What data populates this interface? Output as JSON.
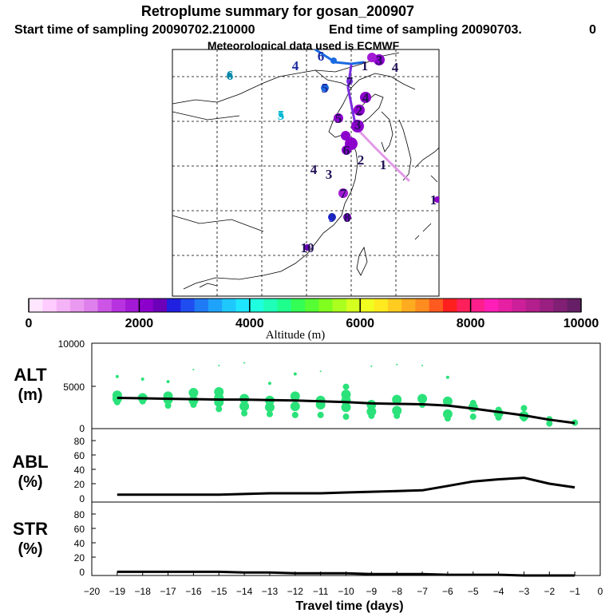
{
  "header": {
    "title": "Retroplume summary for gosan_200907",
    "start_label": "Start time of sampling 20090702.210000",
    "end_label": "End time of sampling 20090703.",
    "end_value": "0",
    "met_label": "Meteorological data used is ECMWF"
  },
  "colorbar": {
    "min": 0,
    "max": 10000,
    "tick_labels": [
      "0",
      "2000",
      "4000",
      "6000",
      "8000",
      "10000"
    ],
    "tick_values": [
      0,
      2000,
      4000,
      6000,
      8000,
      10000
    ],
    "title": "Altitude (m)",
    "colors": [
      "#ffe6ff",
      "#ffccff",
      "#f5b3f7",
      "#ea99f0",
      "#de80eb",
      "#cc55e6",
      "#b833e0",
      "#a31ad6",
      "#8c00cc",
      "#6b00b8",
      "#2020e0",
      "#1f4df0",
      "#1f7af5",
      "#1fa3fa",
      "#1fc8fc",
      "#1fe6ff",
      "#1fffe0",
      "#1fffb8",
      "#1fff8c",
      "#33ff55",
      "#55ff33",
      "#80ff1f",
      "#aaff1f",
      "#d4ff1f",
      "#f0ff1f",
      "#ffea1f",
      "#ffcc1f",
      "#ffab1f",
      "#ff8c1f",
      "#ff5a1f",
      "#ff1f1f",
      "#ff1f5a",
      "#ff1f8c",
      "#ff1fb8",
      "#e61fa3",
      "#cc1f99",
      "#b31f8c",
      "#991f80",
      "#801f73",
      "#661f66"
    ]
  },
  "map": {
    "labels": [
      {
        "text": "6",
        "color": "#0088aa"
      },
      {
        "text": "4",
        "color": "#1a2aa0"
      },
      {
        "text": "5",
        "color": "#00b8d4"
      },
      {
        "text": "4",
        "color": "#221155"
      },
      {
        "text": "3",
        "color": "#221155"
      },
      {
        "text": "2",
        "color": "#221155"
      },
      {
        "text": "1",
        "color": "#221155"
      },
      {
        "text": "4",
        "color": "#221155"
      },
      {
        "text": "1",
        "color": "#221155"
      },
      {
        "text": "10",
        "color": "#221155"
      },
      {
        "text": "7",
        "color": "#221155"
      },
      {
        "text": "9",
        "color": "#1a2aa0"
      },
      {
        "text": "8",
        "color": "#221155"
      },
      {
        "text": "6",
        "color": "#221155"
      },
      {
        "text": "5",
        "color": "#221155"
      },
      {
        "text": "4",
        "color": "#221155"
      },
      {
        "text": "3",
        "color": "#221155"
      },
      {
        "text": "2",
        "color": "#221155"
      },
      {
        "text": "3",
        "color": "#221155"
      },
      {
        "text": "7",
        "color": "#221155"
      },
      {
        "text": "1",
        "color": "#221155"
      },
      {
        "text": "6",
        "color": "#1a2aa0"
      },
      {
        "text": "5",
        "color": "#1a2aa0"
      }
    ]
  },
  "panels": {
    "alt_label": [
      "ALT",
      "(m)"
    ],
    "abl_label": [
      "ABL",
      "(%)"
    ],
    "str_label": [
      "STR",
      "(%)"
    ],
    "alt_ticks": [
      "10000",
      "5000",
      "0"
    ],
    "pct_ticks": [
      "80",
      "60",
      "40",
      "20",
      "0"
    ],
    "x_ticks": [
      "−20",
      "−19",
      "−18",
      "−17",
      "−16",
      "−15",
      "−14",
      "−13",
      "−12",
      "−11",
      "−10",
      "−9",
      "−8",
      "−7",
      "−6",
      "−5",
      "−4",
      "−3",
      "−2",
      "−1",
      "0"
    ],
    "xlabel": "Travel time (days)"
  },
  "chart_data": {
    "type": "line",
    "x": [
      -19,
      -18,
      -17,
      -16,
      -15,
      -14,
      -13,
      -12,
      -11,
      -10,
      -9,
      -8,
      -7,
      -6,
      -5,
      -4,
      -3,
      -2,
      -1
    ],
    "xlim": [
      -20,
      0
    ],
    "series": [
      {
        "name": "ALT median (m)",
        "ylim": [
          0,
          10000
        ],
        "values": [
          3600,
          3550,
          3500,
          3450,
          3400,
          3400,
          3350,
          3300,
          3200,
          3100,
          2950,
          2900,
          2850,
          2700,
          2350,
          1950,
          1550,
          1050,
          650
        ]
      },
      {
        "name": "ABL (%)",
        "ylim": [
          0,
          100
        ],
        "values": [
          10,
          10,
          10,
          10,
          10,
          11,
          12,
          12,
          12,
          13,
          14,
          15,
          16,
          22,
          28,
          31,
          33,
          25,
          20
        ]
      },
      {
        "name": "STR (%)",
        "ylim": [
          0,
          100
        ],
        "values": [
          5,
          5,
          5,
          5,
          5,
          4,
          4,
          3,
          3,
          3,
          2,
          2,
          2,
          1,
          1,
          1,
          0,
          0,
          0
        ]
      }
    ],
    "alt_points": [
      {
        "day": -19,
        "values": [
          3100,
          3500,
          3900,
          6100
        ]
      },
      {
        "day": -18,
        "values": [
          3200,
          3600,
          5800
        ]
      },
      {
        "day": -17,
        "values": [
          2700,
          3400,
          3800,
          5500
        ]
      },
      {
        "day": -16,
        "values": [
          2800,
          3300,
          4200,
          6900
        ]
      },
      {
        "day": -15,
        "values": [
          2300,
          3100,
          3600,
          4300,
          7400
        ]
      },
      {
        "day": -14,
        "values": [
          1800,
          2600,
          3500,
          7700
        ]
      },
      {
        "day": -13,
        "values": [
          1700,
          2500,
          3300,
          5300
        ]
      },
      {
        "day": -12,
        "values": [
          1600,
          2600,
          3800,
          6400
        ]
      },
      {
        "day": -11,
        "values": [
          1600,
          2800,
          3300,
          6700
        ]
      },
      {
        "day": -10,
        "values": [
          1400,
          2500,
          3300,
          4000,
          4900
        ]
      },
      {
        "day": -9,
        "values": [
          1500,
          2000,
          2800,
          7300
        ]
      },
      {
        "day": -8,
        "values": [
          1500,
          2100,
          3400,
          7500
        ]
      },
      {
        "day": -7,
        "values": [
          2800,
          3500,
          7400
        ]
      },
      {
        "day": -6,
        "values": [
          1200,
          1700,
          3200,
          6000
        ]
      },
      {
        "day": -5,
        "values": [
          1400,
          2500,
          3000
        ]
      },
      {
        "day": -4,
        "values": [
          1300,
          1800,
          2200
        ]
      },
      {
        "day": -3,
        "values": [
          1200,
          1500,
          2400
        ]
      },
      {
        "day": -2,
        "values": [
          600,
          1100
        ]
      },
      {
        "day": -1,
        "values": [
          700
        ]
      }
    ]
  }
}
